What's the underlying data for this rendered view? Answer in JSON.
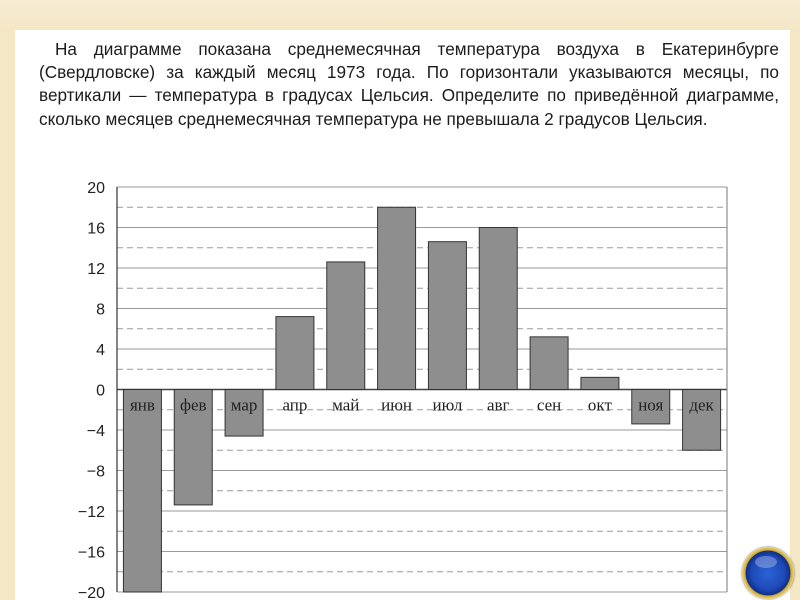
{
  "question": {
    "text": "На диаграмме показана среднемесячная температура воздуха в Екатеринбурге (Свердловске) за каждый месяц 1973 года. По горизонтали указываются месяцы, по вертикали — температура в градусах Цельсия. Определите по приведённой диаграмме, сколько месяцев среднемесячная температура не превышала 2 градусов Цельсия."
  },
  "chart_data": {
    "type": "bar",
    "title": "",
    "xlabel": "",
    "ylabel": "",
    "categories": [
      "янв",
      "фев",
      "мар",
      "апр",
      "май",
      "июн",
      "июл",
      "авг",
      "сен",
      "окт",
      "ноя",
      "дек"
    ],
    "values": [
      -20,
      -11.4,
      -4.6,
      7.2,
      12.6,
      18,
      14.6,
      16,
      5.2,
      1.2,
      -3.4,
      -6
    ],
    "ylim": [
      -20,
      20
    ],
    "yticks": [
      20,
      16,
      12,
      8,
      4,
      0,
      -4,
      -8,
      -12,
      -16,
      -20
    ],
    "ytick_labels": [
      "20",
      "16",
      "12",
      "8",
      "4",
      "0",
      "−4",
      "−8",
      "−12",
      "−16",
      "−20"
    ],
    "grid": "horizontal solid at labeled ticks, dashed between",
    "bar_color": "#8e8e8e"
  }
}
